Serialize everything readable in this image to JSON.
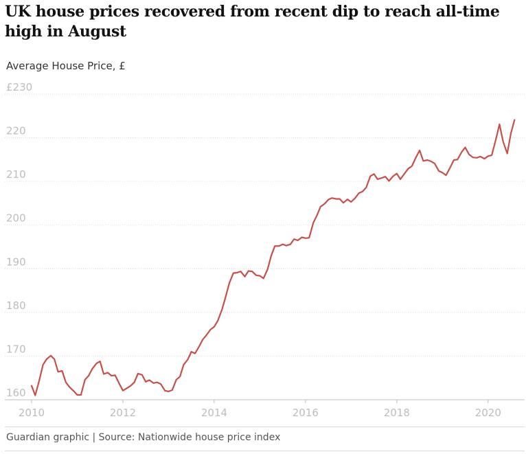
{
  "colors": {
    "line": "#c74f4a",
    "grid": "#dcdcdc",
    "tick": "#bdbdbd"
  },
  "source": "Guardian graphic | Source: Nationwide house price index",
  "chart_data": {
    "type": "line",
    "title": "UK house prices recovered from recent dip to reach all-time high in August",
    "ylabel": "Average House Price, £",
    "xlabel": "",
    "y_ticks": [
      "£230",
      "220",
      "210",
      "200",
      "190",
      "180",
      "170",
      "160"
    ],
    "y_tick_values": [
      230,
      220,
      210,
      200,
      190,
      180,
      170,
      160
    ],
    "x_ticks": [
      "2010",
      "2012",
      "2014",
      "2016",
      "2018",
      "2020"
    ],
    "x_tick_values": [
      2010,
      2012,
      2014,
      2016,
      2018,
      2020
    ],
    "xlim": [
      2010,
      2020.62
    ],
    "ylim": [
      160,
      230
    ],
    "grid": "horizontal",
    "x": [
      2010.0,
      2010.08,
      2010.17,
      2010.25,
      2010.33,
      2010.42,
      2010.5,
      2010.58,
      2010.67,
      2010.75,
      2010.83,
      2010.92,
      2011.0,
      2011.08,
      2011.17,
      2011.25,
      2011.33,
      2011.42,
      2011.5,
      2011.58,
      2011.67,
      2011.75,
      2011.83,
      2011.92,
      2012.0,
      2012.08,
      2012.17,
      2012.25,
      2012.33,
      2012.42,
      2012.5,
      2012.58,
      2012.67,
      2012.75,
      2012.83,
      2012.92,
      2013.0,
      2013.08,
      2013.17,
      2013.25,
      2013.33,
      2013.42,
      2013.5,
      2013.58,
      2013.67,
      2013.75,
      2013.83,
      2013.92,
      2014.0,
      2014.08,
      2014.17,
      2014.25,
      2014.33,
      2014.42,
      2014.5,
      2014.58,
      2014.67,
      2014.75,
      2014.83,
      2014.92,
      2015.0,
      2015.08,
      2015.17,
      2015.25,
      2015.33,
      2015.42,
      2015.5,
      2015.58,
      2015.67,
      2015.75,
      2015.83,
      2015.92,
      2016.0,
      2016.08,
      2016.17,
      2016.25,
      2016.33,
      2016.42,
      2016.5,
      2016.58,
      2016.67,
      2016.75,
      2016.83,
      2016.92,
      2017.0,
      2017.08,
      2017.17,
      2017.25,
      2017.33,
      2017.42,
      2017.5,
      2017.58,
      2017.67,
      2017.75,
      2017.83,
      2017.92,
      2018.0,
      2018.08,
      2018.17,
      2018.25,
      2018.33,
      2018.42,
      2018.5,
      2018.58,
      2018.67,
      2018.75,
      2018.83,
      2018.92,
      2019.0,
      2019.08,
      2019.17,
      2019.25,
      2019.33,
      2019.42,
      2019.5,
      2019.58,
      2019.67,
      2019.75,
      2019.83,
      2019.92,
      2020.0,
      2020.08,
      2020.17,
      2020.25,
      2020.33,
      2020.42,
      2020.5,
      2020.58
    ],
    "series": [
      {
        "values": [
          163.2,
          161.0,
          164.5,
          168.0,
          169.3,
          170.1,
          169.3,
          166.4,
          166.6,
          164.0,
          162.9,
          162.0,
          161.1,
          161.1,
          164.6,
          165.5,
          167.1,
          168.3,
          168.8,
          165.9,
          166.2,
          165.5,
          165.6,
          163.7,
          162.1,
          162.6,
          163.2,
          164.0,
          166.0,
          165.7,
          164.1,
          164.5,
          163.8,
          164.0,
          163.6,
          162.1,
          161.9,
          162.2,
          164.6,
          165.3,
          168.0,
          169.2,
          171.0,
          170.6,
          172.2,
          173.8,
          174.8,
          176.1,
          176.7,
          178.1,
          180.6,
          183.5,
          186.7,
          189.0,
          189.1,
          189.4,
          188.2,
          189.5,
          189.4,
          188.5,
          188.4,
          187.8,
          189.9,
          193.0,
          195.2,
          195.2,
          195.6,
          195.3,
          195.6,
          196.8,
          196.5,
          197.2,
          197.0,
          197.1,
          200.5,
          202.2,
          204.2,
          204.9,
          205.8,
          206.2,
          206.0,
          206.0,
          205.1,
          205.9,
          205.3,
          206.1,
          207.3,
          207.7,
          208.6,
          211.2,
          211.7,
          210.5,
          210.8,
          211.1,
          210.1,
          211.2,
          211.8,
          210.5,
          211.8,
          212.9,
          213.5,
          215.5,
          217.1,
          214.7,
          214.9,
          214.6,
          214.1,
          212.4,
          212.0,
          211.4,
          213.2,
          214.9,
          215.0,
          216.7,
          217.8,
          216.2,
          215.5,
          215.4,
          215.7,
          215.2,
          215.8,
          216.0,
          219.6,
          223.1,
          219.1,
          216.4,
          221.0,
          224.1
        ]
      }
    ]
  }
}
